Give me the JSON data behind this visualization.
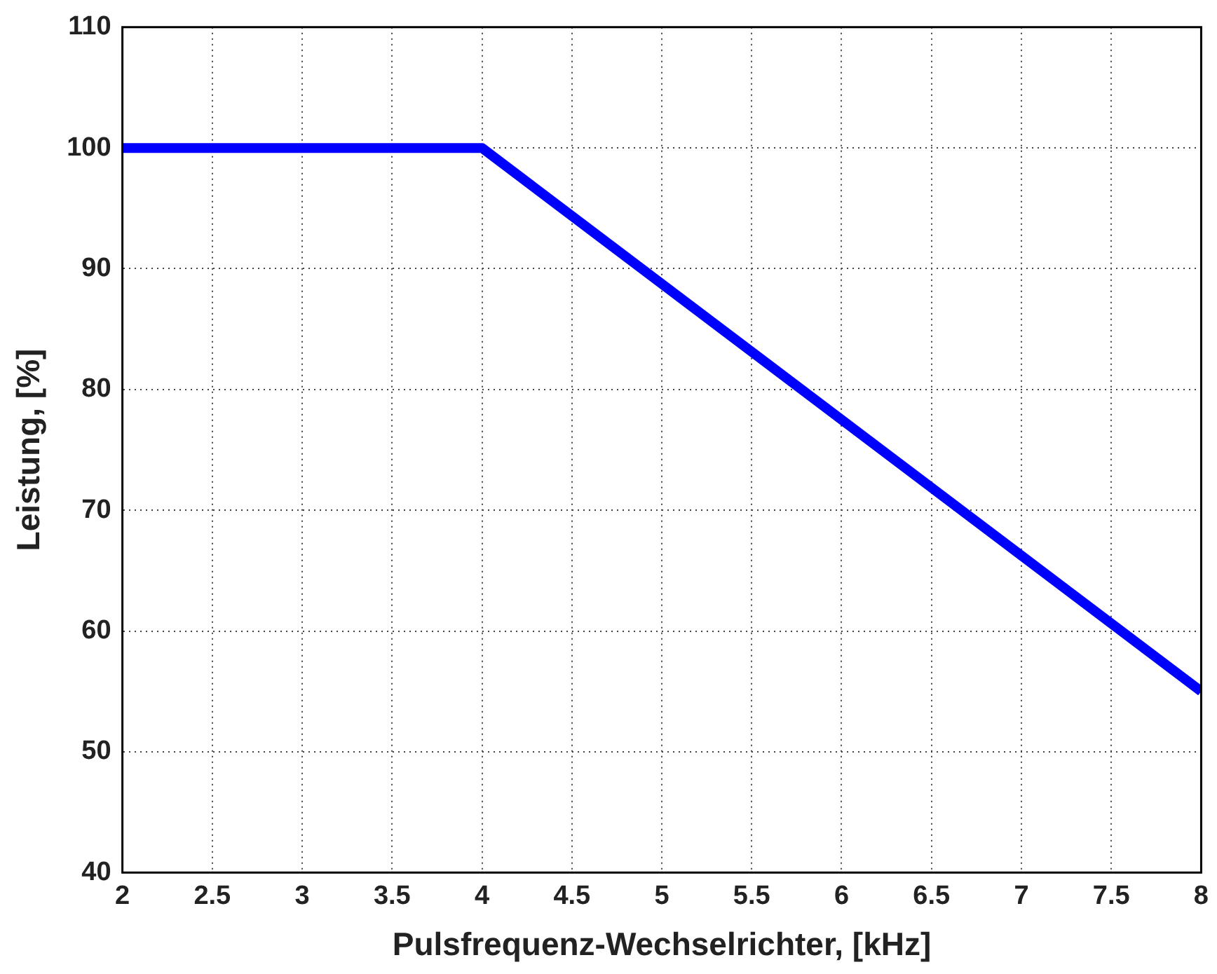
{
  "chart_data": {
    "type": "line",
    "xlabel": "Pulsfrequenz-Wechselrichter, [kHz]",
    "ylabel": "Leistung, [%]",
    "x": [
      2,
      4,
      8
    ],
    "series": [
      {
        "color": "#0000ff",
        "values": [
          100,
          100,
          55
        ]
      }
    ],
    "xlim": [
      2,
      8
    ],
    "xticks": [
      2,
      2.5,
      3,
      3.5,
      4,
      4.5,
      5,
      5.5,
      6,
      6.5,
      7,
      7.5,
      8
    ],
    "ylim": [
      40,
      110
    ],
    "yticks": [
      40,
      50,
      60,
      70,
      80,
      90,
      100,
      110
    ],
    "grid": true,
    "legend": false,
    "marker": "none",
    "line_style": "solid"
  }
}
